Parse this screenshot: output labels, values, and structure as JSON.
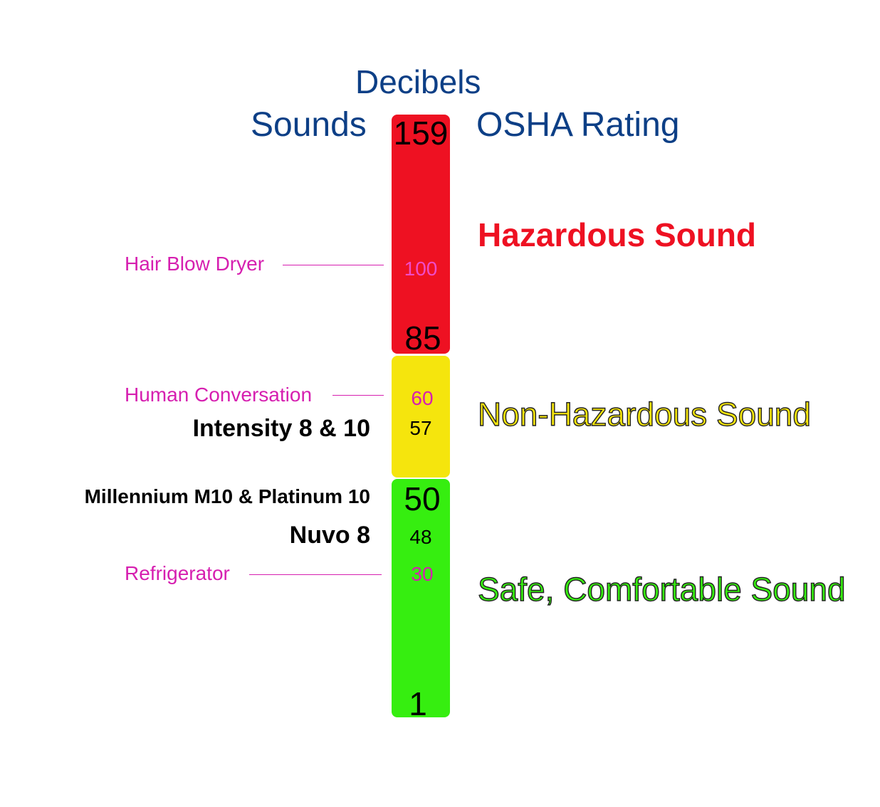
{
  "headers": {
    "top": "Decibels",
    "left": "Sounds",
    "right": "OSHA Rating"
  },
  "colors": {
    "header": "#0d3f86",
    "hazardous": "#ee1122",
    "non_hazardous": "#f5e50d",
    "safe": "#36ee10",
    "reference_text": "#d61fb0"
  },
  "scale": {
    "top": "159",
    "hazard_threshold": "85",
    "safe_threshold": "50",
    "bottom": "1"
  },
  "references": [
    {
      "label": "Hair Blow Dryer",
      "value": "100"
    },
    {
      "label": "Human Conversation",
      "value": "60"
    },
    {
      "label": "Refrigerator",
      "value": "30"
    }
  ],
  "products": [
    {
      "label": "Intensity 8 & 10",
      "value": "57"
    },
    {
      "label": "Millennium M10 & Platinum 10",
      "value": ""
    },
    {
      "label": "Nuvo 8",
      "value": "48"
    }
  ],
  "zones": {
    "hazardous": "Hazardous Sound",
    "non_hazardous": "Non-Hazardous Sound",
    "safe": "Safe, Comfortable Sound"
  }
}
